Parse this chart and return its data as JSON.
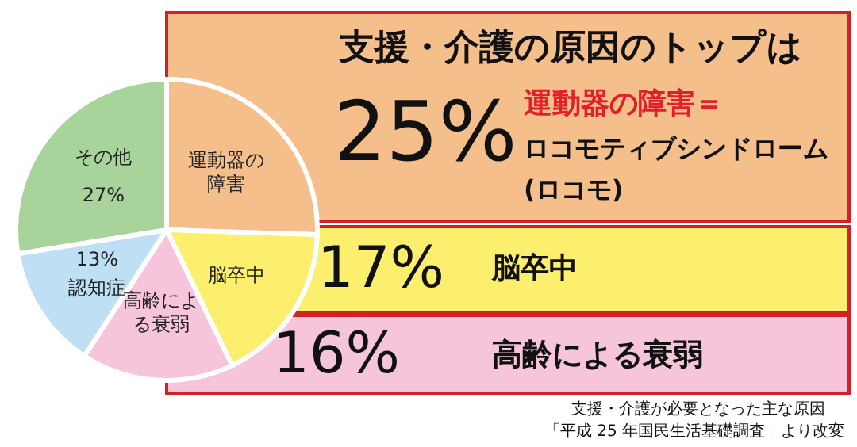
{
  "chart_data": {
    "type": "pie",
    "title": "支援・介護の原因のトップは",
    "categories": [
      "運動器の障害",
      "脳卒中",
      "高齢による衰弱",
      "認知症",
      "その他"
    ],
    "values": [
      25,
      17,
      16,
      13,
      27
    ],
    "value_labels": [
      "25%",
      "17%",
      "16%",
      "13%",
      "27%"
    ],
    "colors": [
      "#f5bf8c",
      "#fcef6e",
      "#f6c5dc",
      "#bfe0f4",
      "#a8d49c"
    ],
    "annotations": [
      "運動器の障害＝",
      "ロコモティブシンドローム",
      "(ロコモ)",
      "脳卒中",
      "高齢による衰弱",
      "支援・介護が必要となった主な原因",
      "「平成 25 年国民生活基礎調査」より改変"
    ]
  }
}
